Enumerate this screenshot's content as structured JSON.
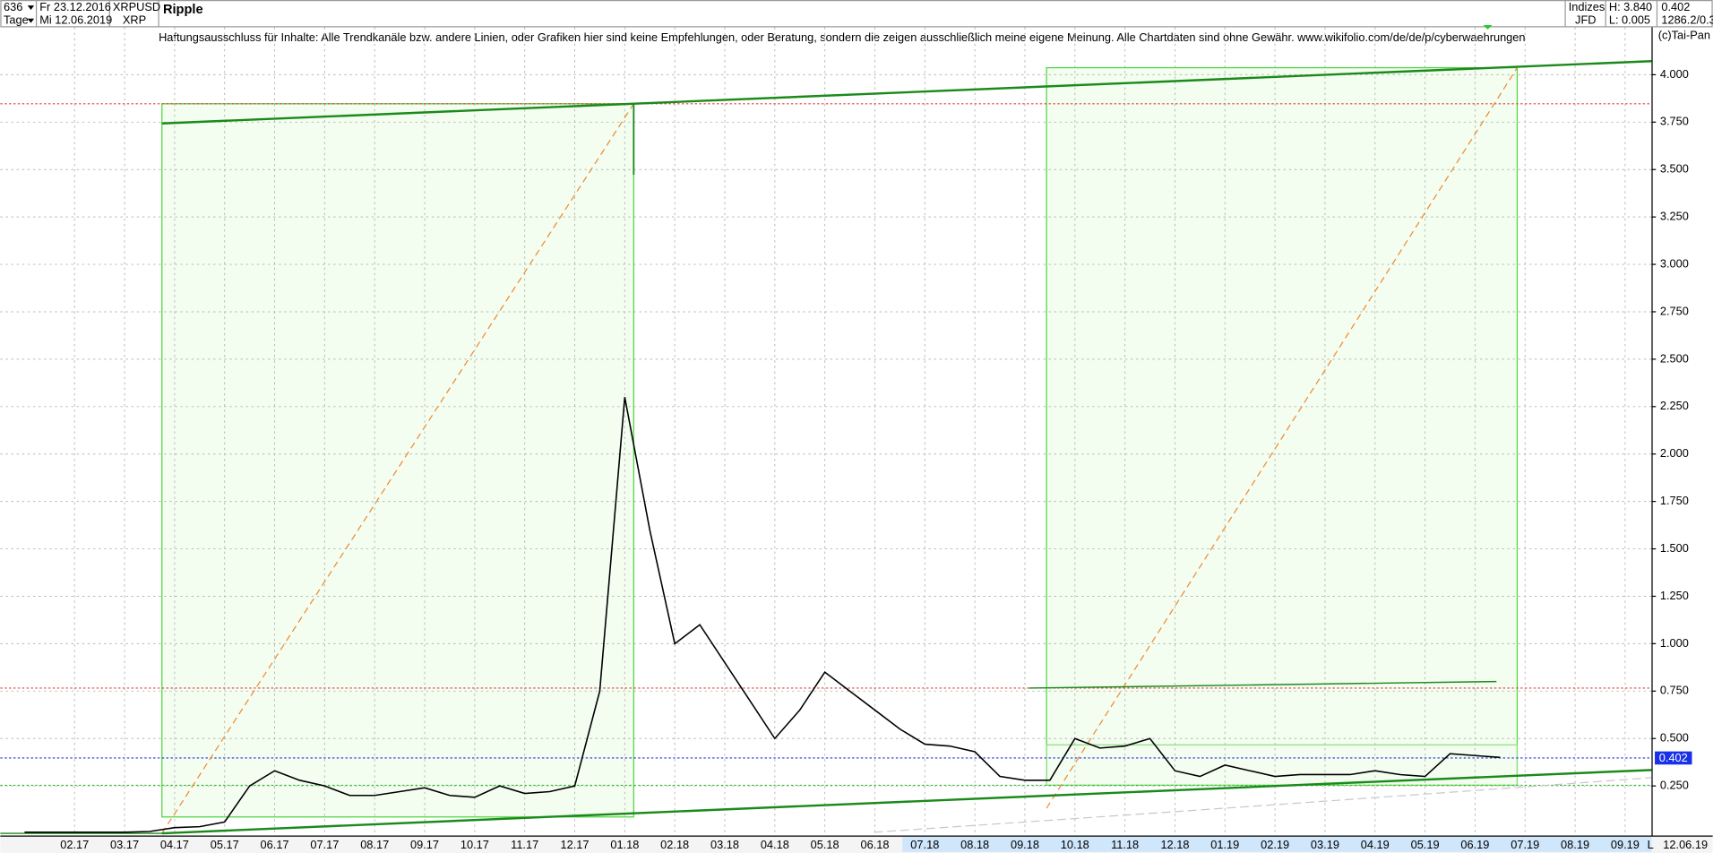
{
  "header": {
    "count": "636",
    "from": "Fr 23.12.2016",
    "period": "Tage",
    "to": "Mi 12.06.2019",
    "symbol": "XRPUSD",
    "short": "XRP",
    "name": "Ripple",
    "group": "Indizes",
    "source": "JFD",
    "high": "H: 3.840",
    "low": "L: 0.005",
    "last": "0.402",
    "extra": "1286.2/0.3"
  },
  "disclaimer": "Haftungsausschluss für Inhalte: Alle Trendkanäle bzw. andere Linien, oder Grafiken hier sind keine Empfehlungen, oder Beratung, sondern die zeigen ausschließlich meine eigene Meinung. Alle Chartdaten sind ohne Gewähr.  www.wikifolio.com/de/de/p/cyberwaehrungen",
  "copyright": "(c)Tai-Pan",
  "chart_data": {
    "type": "line",
    "color": "#000000",
    "grid": true,
    "date_label": "12.06.19",
    "scale_mode": "L",
    "categories": [
      null,
      null,
      "02.17",
      null,
      "03.17",
      null,
      "04.17",
      null,
      "05.17",
      null,
      "06.17",
      null,
      "07.17",
      null,
      "08.17",
      null,
      "09.17",
      null,
      "10.17",
      null,
      "11.17",
      null,
      "12.17",
      null,
      "01.18",
      null,
      "02.18",
      null,
      "03.18",
      null,
      "04.18",
      null,
      "05.18",
      null,
      "06.18",
      null,
      "07.18",
      null,
      "08.18",
      null,
      "09.18",
      null,
      "10.18",
      null,
      "11.18",
      null,
      "12.18",
      null,
      "01.19",
      null,
      "02.19",
      null,
      "03.19",
      null,
      "04.19",
      null,
      "05.19",
      null,
      "06.19",
      null,
      "07.19",
      null,
      "08.19",
      null,
      "09.19"
    ],
    "values": [
      0.006,
      0.006,
      0.006,
      0.006,
      0.006,
      0.01,
      0.03,
      0.035,
      0.06,
      0.25,
      0.33,
      0.28,
      0.25,
      0.2,
      0.2,
      0.22,
      0.24,
      0.2,
      0.19,
      0.25,
      0.21,
      0.22,
      0.25,
      0.75,
      2.3,
      1.6,
      1.0,
      1.1,
      0.9,
      0.7,
      0.5,
      0.65,
      0.85,
      0.75,
      0.65,
      0.55,
      0.47,
      0.46,
      0.43,
      0.3,
      0.28,
      0.28,
      0.5,
      0.45,
      0.46,
      0.5,
      0.33,
      0.3,
      0.36,
      0.33,
      0.3,
      0.31,
      0.31,
      0.31,
      0.33,
      0.31,
      0.3,
      0.42,
      0.41,
      0.4,
      null,
      null,
      null,
      null,
      null
    ],
    "ylim": [
      0,
      4.25
    ],
    "yticks": [
      {
        "value": 0.25,
        "label": "0.250"
      },
      {
        "value": 0.5,
        "label": "0.500"
      },
      {
        "value": 0.75,
        "label": "0.750"
      },
      {
        "value": 1,
        "label": "1.000"
      },
      {
        "value": 1.25,
        "label": "1.250"
      },
      {
        "value": 1.5,
        "label": "1.500"
      },
      {
        "value": 1.75,
        "label": "1.750"
      },
      {
        "value": 2,
        "label": "2.000"
      },
      {
        "value": 2.25,
        "label": "2.250"
      },
      {
        "value": 2.5,
        "label": "2.500"
      },
      {
        "value": 2.75,
        "label": "2.750"
      },
      {
        "value": 3,
        "label": "3.000"
      },
      {
        "value": 3.25,
        "label": "3.250"
      },
      {
        "value": 3.5,
        "label": "3.500"
      },
      {
        "value": 3.75,
        "label": "3.750"
      },
      {
        "value": 4,
        "label": "4.000"
      }
    ]
  }
}
